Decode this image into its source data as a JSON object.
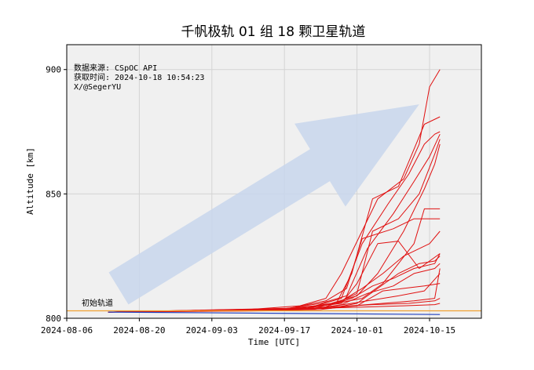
{
  "chart_data": {
    "type": "line",
    "title": "千帆极轨 01 组 18 颗卫星轨道",
    "xlabel": "Time [UTC]",
    "ylabel": "Altitude [km]",
    "xlim": [
      "2024-08-06",
      "2024-10-25"
    ],
    "ylim": [
      800,
      910
    ],
    "x_ticks": [
      "2024-08-06",
      "2024-08-20",
      "2024-09-03",
      "2024-09-17",
      "2024-10-01",
      "2024-10-15"
    ],
    "y_ticks": [
      800,
      850,
      900
    ],
    "grid": true,
    "info_lines": [
      "数据来源: CSpOC API",
      "获取时间: 2024-10-18 10:54:23",
      "X/@SegerYU"
    ],
    "baseline": {
      "label": "初始轨道",
      "value": 803,
      "color": "#f0a030"
    },
    "reference_series": {
      "color": "#2040c0",
      "x": [
        "2024-08-14",
        "2024-10-17"
      ],
      "y": [
        802.5,
        801.5
      ]
    },
    "trend_arrow": {
      "from": {
        "x": "2024-08-16",
        "y": 812
      },
      "to": {
        "x": "2024-10-13",
        "y": 886
      },
      "color": "#c8d6ec"
    },
    "series_color": "#e01010",
    "series": [
      {
        "x": [
          "2024-08-14",
          "2024-09-10",
          "2024-09-20",
          "2024-09-25",
          "2024-09-28",
          "2024-10-05",
          "2024-10-10",
          "2024-10-13",
          "2024-10-15",
          "2024-10-17"
        ],
        "y": [
          802.5,
          803.5,
          805,
          808,
          818,
          848,
          856,
          870,
          893,
          900
        ]
      },
      {
        "x": [
          "2024-08-14",
          "2024-09-12",
          "2024-09-22",
          "2024-09-27",
          "2024-09-30",
          "2024-10-04",
          "2024-10-09",
          "2024-10-12",
          "2024-10-14",
          "2024-10-17"
        ],
        "y": [
          802.5,
          803,
          804.5,
          806,
          818,
          848,
          853,
          868,
          878,
          881
        ]
      },
      {
        "x": [
          "2024-08-14",
          "2024-09-15",
          "2024-09-23",
          "2024-09-28",
          "2024-10-02",
          "2024-10-07",
          "2024-10-11",
          "2024-10-14",
          "2024-10-16",
          "2024-10-17"
        ],
        "y": [
          802.5,
          803.5,
          805,
          808,
          830,
          846,
          858,
          870,
          874,
          875
        ]
      },
      {
        "x": [
          "2024-08-14",
          "2024-09-16",
          "2024-09-24",
          "2024-09-29",
          "2024-10-03",
          "2024-10-08",
          "2024-10-12",
          "2024-10-15",
          "2024-10-17"
        ],
        "y": [
          802.5,
          803.5,
          806,
          809,
          828,
          842,
          855,
          865,
          874
        ]
      },
      {
        "x": [
          "2024-08-14",
          "2024-09-18",
          "2024-09-26",
          "2024-10-01",
          "2024-10-05",
          "2024-10-10",
          "2024-10-14",
          "2024-10-16",
          "2024-10-17"
        ],
        "y": [
          802.5,
          803.5,
          806,
          809,
          818,
          835,
          852,
          862,
          870
        ]
      },
      {
        "x": [
          "2024-08-14",
          "2024-09-20",
          "2024-09-27",
          "2024-10-02",
          "2024-10-06",
          "2024-10-12",
          "2024-10-14",
          "2024-10-17"
        ],
        "y": [
          802.5,
          804,
          806,
          808,
          814,
          830,
          844,
          844
        ]
      },
      {
        "x": [
          "2024-08-14",
          "2024-09-20",
          "2024-09-27",
          "2024-10-01",
          "2024-10-04",
          "2024-10-09",
          "2024-10-13",
          "2024-10-16",
          "2024-10-17"
        ],
        "y": [
          802.5,
          803.5,
          806,
          810,
          835,
          840,
          850,
          866,
          872
        ]
      },
      {
        "x": [
          "2024-08-14",
          "2024-09-18",
          "2024-09-25",
          "2024-09-29",
          "2024-10-02",
          "2024-10-08",
          "2024-10-12",
          "2024-10-17"
        ],
        "y": [
          802.5,
          804,
          807,
          812,
          832,
          836,
          840,
          840
        ]
      },
      {
        "x": [
          "2024-08-14",
          "2024-09-22",
          "2024-09-28",
          "2024-10-02",
          "2024-10-06",
          "2024-10-10",
          "2024-10-15",
          "2024-10-17"
        ],
        "y": [
          802.5,
          803.5,
          807,
          812,
          818,
          825,
          830,
          835
        ]
      },
      {
        "x": [
          "2024-08-14",
          "2024-09-20",
          "2024-09-28",
          "2024-10-01",
          "2024-10-05",
          "2024-10-09",
          "2024-10-13",
          "2024-10-17"
        ],
        "y": [
          802.5,
          804,
          806,
          814,
          830,
          831,
          820,
          826
        ]
      },
      {
        "x": [
          "2024-08-14",
          "2024-09-24",
          "2024-09-30",
          "2024-10-04",
          "2024-10-08",
          "2024-10-12",
          "2024-10-16",
          "2024-10-17"
        ],
        "y": [
          802.5,
          804,
          808,
          813,
          816,
          820,
          822,
          826
        ]
      },
      {
        "x": [
          "2024-08-14",
          "2024-09-26",
          "2024-10-01",
          "2024-10-05",
          "2024-10-09",
          "2024-10-13",
          "2024-10-16",
          "2024-10-17"
        ],
        "y": [
          802.5,
          804,
          806,
          812,
          818,
          822,
          823,
          825
        ]
      },
      {
        "x": [
          "2024-08-14",
          "2024-09-22",
          "2024-09-28",
          "2024-10-03",
          "2024-10-08",
          "2024-10-12",
          "2024-10-16",
          "2024-10-17"
        ],
        "y": [
          802.5,
          803.5,
          805.5,
          810,
          813,
          818,
          820,
          822
        ]
      },
      {
        "x": [
          "2024-08-14",
          "2024-09-25",
          "2024-10-01",
          "2024-10-06",
          "2024-10-10",
          "2024-10-14",
          "2024-10-17"
        ],
        "y": [
          802.5,
          804,
          805,
          811,
          812,
          813,
          814
        ]
      },
      {
        "x": [
          "2024-08-14",
          "2024-09-20",
          "2024-09-27",
          "2024-10-03",
          "2024-10-09",
          "2024-10-14",
          "2024-10-17"
        ],
        "y": [
          802.5,
          803.5,
          805,
          807,
          809,
          811,
          818
        ]
      },
      {
        "x": [
          "2024-08-14",
          "2024-09-24",
          "2024-09-30",
          "2024-10-06",
          "2024-10-12",
          "2024-10-16",
          "2024-10-17"
        ],
        "y": [
          802.5,
          803.5,
          805,
          806,
          807,
          808,
          820
        ]
      },
      {
        "x": [
          "2024-08-14",
          "2024-09-18",
          "2024-09-26",
          "2024-10-04",
          "2024-10-11",
          "2024-10-16",
          "2024-10-17"
        ],
        "y": [
          802.5,
          803.5,
          804.5,
          805.5,
          806,
          807,
          808
        ]
      },
      {
        "x": [
          "2024-08-14",
          "2024-09-14",
          "2024-09-24",
          "2024-10-02",
          "2024-10-10",
          "2024-10-16",
          "2024-10-17"
        ],
        "y": [
          802.5,
          803,
          804,
          804.5,
          805,
          805.5,
          806
        ]
      }
    ]
  }
}
